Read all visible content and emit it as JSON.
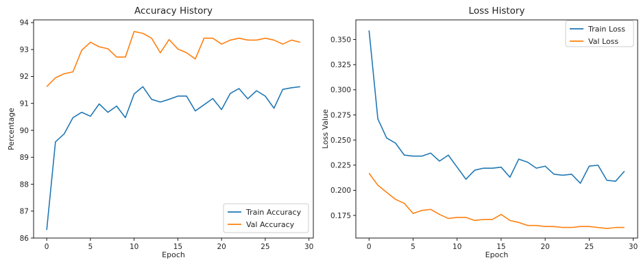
{
  "colors": {
    "train": "#1f77b4",
    "val": "#ff7f0e",
    "axis": "#000000",
    "legend_border": "#cccccc"
  },
  "chart_data": [
    {
      "type": "line",
      "title": "Accuracy History",
      "xlabel": "Epoch",
      "ylabel": "Percentage",
      "xlim": [
        -1.5,
        30.5
      ],
      "ylim": [
        86.0,
        94.1
      ],
      "xticks": [
        0,
        5,
        10,
        15,
        20,
        25,
        30
      ],
      "yticks": [
        86,
        87,
        88,
        89,
        90,
        91,
        92,
        93,
        94
      ],
      "grid": false,
      "legend_position": "lower-right",
      "series": [
        {
          "name": "Train Accuracy",
          "color": "#1f77b4",
          "x": [
            0,
            1,
            2,
            3,
            4,
            5,
            6,
            7,
            8,
            9,
            10,
            11,
            12,
            13,
            14,
            15,
            16,
            17,
            18,
            19,
            20,
            21,
            22,
            23,
            24,
            25,
            26,
            27,
            28,
            29
          ],
          "values": [
            86.3,
            89.57,
            89.87,
            90.47,
            90.67,
            90.52,
            90.98,
            90.67,
            90.9,
            90.47,
            91.35,
            91.62,
            91.15,
            91.05,
            91.15,
            91.27,
            91.27,
            90.72,
            90.95,
            91.18,
            90.77,
            91.37,
            91.55,
            91.17,
            91.47,
            91.27,
            90.82,
            91.52,
            91.58,
            91.62
          ]
        },
        {
          "name": "Val Accuracy",
          "color": "#ff7f0e",
          "x": [
            0,
            1,
            2,
            3,
            4,
            5,
            6,
            7,
            8,
            9,
            10,
            11,
            12,
            13,
            14,
            15,
            16,
            17,
            18,
            19,
            20,
            21,
            22,
            23,
            24,
            25,
            26,
            27,
            28,
            29
          ],
          "values": [
            91.62,
            91.95,
            92.1,
            92.17,
            92.97,
            93.27,
            93.1,
            93.03,
            92.72,
            92.72,
            93.67,
            93.6,
            93.42,
            92.88,
            93.37,
            93.02,
            92.88,
            92.65,
            93.42,
            93.42,
            93.2,
            93.35,
            93.42,
            93.35,
            93.35,
            93.42,
            93.35,
            93.2,
            93.35,
            93.27
          ]
        }
      ]
    },
    {
      "type": "line",
      "title": "Loss History",
      "xlabel": "Epoch",
      "ylabel": "Loss Value",
      "xlim": [
        -1.5,
        30.5
      ],
      "ylim": [
        0.1525,
        0.3695
      ],
      "xticks": [
        0,
        5,
        10,
        15,
        20,
        25,
        30
      ],
      "yticks": [
        0.175,
        0.2,
        0.225,
        0.25,
        0.275,
        0.3,
        0.325,
        0.35
      ],
      "ytick_labels": [
        "0.175",
        "0.200",
        "0.225",
        "0.250",
        "0.275",
        "0.300",
        "0.325",
        "0.350"
      ],
      "grid": false,
      "legend_position": "upper-right",
      "series": [
        {
          "name": "Train Loss",
          "color": "#1f77b4",
          "x": [
            0,
            1,
            2,
            3,
            4,
            5,
            6,
            7,
            8,
            9,
            10,
            11,
            12,
            13,
            14,
            15,
            16,
            17,
            18,
            19,
            20,
            21,
            22,
            23,
            24,
            25,
            26,
            27,
            28,
            29
          ],
          "values": [
            0.359,
            0.271,
            0.252,
            0.247,
            0.235,
            0.234,
            0.234,
            0.237,
            0.229,
            0.235,
            0.223,
            0.211,
            0.22,
            0.222,
            0.222,
            0.223,
            0.213,
            0.231,
            0.228,
            0.222,
            0.224,
            0.216,
            0.215,
            0.216,
            0.207,
            0.224,
            0.225,
            0.21,
            0.209,
            0.219
          ]
        },
        {
          "name": "Val Loss",
          "color": "#ff7f0e",
          "x": [
            0,
            1,
            2,
            3,
            4,
            5,
            6,
            7,
            8,
            9,
            10,
            11,
            12,
            13,
            14,
            15,
            16,
            17,
            18,
            19,
            20,
            21,
            22,
            23,
            24,
            25,
            26,
            27,
            28,
            29
          ],
          "values": [
            0.217,
            0.205,
            0.198,
            0.191,
            0.187,
            0.177,
            0.18,
            0.181,
            0.176,
            0.172,
            0.173,
            0.173,
            0.17,
            0.171,
            0.171,
            0.176,
            0.17,
            0.168,
            0.165,
            0.165,
            0.164,
            0.164,
            0.163,
            0.163,
            0.164,
            0.164,
            0.163,
            0.162,
            0.163,
            0.163
          ]
        }
      ]
    }
  ]
}
